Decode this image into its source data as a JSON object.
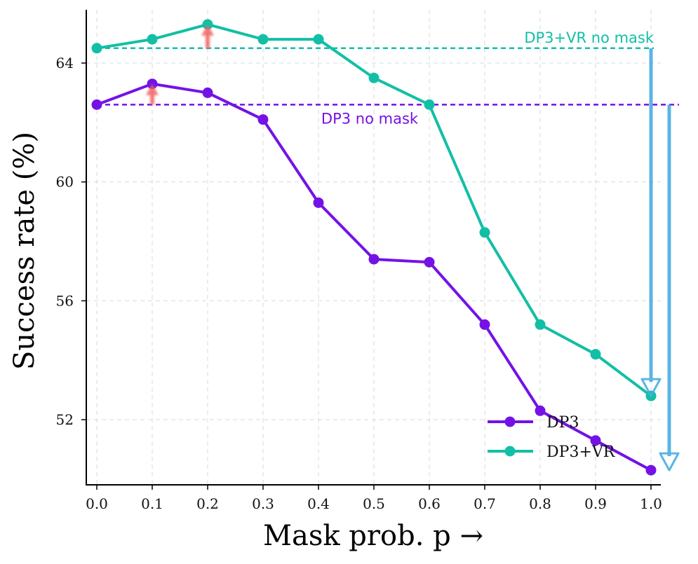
{
  "chart_data": {
    "type": "line",
    "xlabel": "Mask prob. p →",
    "ylabel": "Success rate (%)",
    "xlim": [
      -0.03,
      1.03
    ],
    "ylim": [
      50.2,
      66.1
    ],
    "xticks": [
      "0.0",
      "0.1",
      "0.2",
      "0.3",
      "0.4",
      "0.5",
      "0.6",
      "0.7",
      "0.8",
      "0.9",
      "1.0"
    ],
    "yticks": [
      "52",
      "56",
      "60",
      "64"
    ],
    "ytick_values": [
      52,
      56,
      60,
      64
    ],
    "x": [
      0.0,
      0.1,
      0.2,
      0.3,
      0.4,
      0.5,
      0.6,
      0.7,
      0.8,
      0.9,
      1.0
    ],
    "series": [
      {
        "name": "DP3",
        "color": "#7412e6",
        "values": [
          62.6,
          63.3,
          63.0,
          62.1,
          59.3,
          57.4,
          57.3,
          55.2,
          52.3,
          51.3,
          50.3
        ]
      },
      {
        "name": "DP3+VR",
        "color": "#12bfa6",
        "values": [
          64.5,
          64.8,
          65.3,
          64.8,
          64.8,
          63.5,
          62.6,
          58.3,
          55.2,
          54.2,
          52.8
        ]
      }
    ],
    "reference_lines": [
      {
        "label": "DP3+VR no mask",
        "value": 64.5,
        "color": "#12bfa6"
      },
      {
        "label": "DP3 no mask",
        "value": 62.6,
        "color": "#7412e6"
      }
    ],
    "up_arrows": [
      {
        "x": 0.1,
        "from": 62.6,
        "to": 63.3
      },
      {
        "x": 0.2,
        "from": 64.5,
        "to": 65.3
      }
    ],
    "drop_arrows": [
      {
        "series": "DP3+VR",
        "from": 64.5,
        "to": 52.8
      },
      {
        "series": "DP3",
        "from": 62.6,
        "to": 50.3
      }
    ],
    "legend_position": "lower-right",
    "grid": true,
    "colors": {
      "up_arrow": "#f26060",
      "drop_arrow": "#4aaee0"
    }
  }
}
